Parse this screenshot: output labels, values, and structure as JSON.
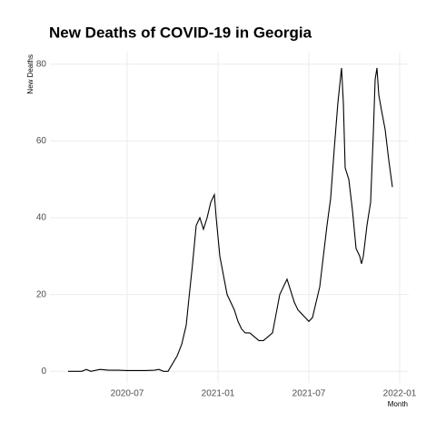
{
  "chart_data": {
    "type": "line",
    "title": "New Deaths of COVID-19 in Georgia",
    "x_label": "Month",
    "y_label": "New Deaths",
    "x": [
      2020.175,
      2020.25,
      2020.275,
      2020.3,
      2020.35,
      2020.4,
      2020.45,
      2020.5,
      2020.55,
      2020.6,
      2020.65,
      2020.675,
      2020.7,
      2020.725,
      2020.75,
      2020.775,
      2020.8,
      2020.825,
      2020.84,
      2020.86,
      2020.88,
      2020.9,
      2020.92,
      2020.94,
      2020.96,
      2020.98,
      2020.99,
      2021.01,
      2021.03,
      2021.05,
      2021.07,
      2021.09,
      2021.11,
      2021.13,
      2021.15,
      2021.175,
      2021.2,
      2021.225,
      2021.25,
      2021.275,
      2021.3,
      2021.32,
      2021.34,
      2021.36,
      2021.38,
      2021.4,
      2021.42,
      2021.44,
      2021.46,
      2021.48,
      2021.5,
      2021.52,
      2021.54,
      2021.56,
      2021.58,
      2021.6,
      2021.62,
      2021.64,
      2021.66,
      2021.68,
      2021.69,
      2021.7,
      2021.72,
      2021.74,
      2021.76,
      2021.78,
      2021.79,
      2021.8,
      2021.82,
      2021.84,
      2021.855,
      2021.865,
      2021.875,
      2021.885,
      2021.9,
      2021.92,
      2021.94,
      2021.96
    ],
    "series": [
      {
        "name": "New Deaths",
        "color": "#000000",
        "values": [
          0,
          0,
          0.5,
          0,
          0.5,
          0.3,
          0.3,
          0.2,
          0.2,
          0.2,
          0.3,
          0.5,
          0,
          0,
          2,
          4,
          7,
          12,
          19,
          28,
          38,
          40,
          37,
          40,
          44,
          46,
          40,
          30,
          25,
          20,
          18,
          16,
          13,
          11,
          10,
          10,
          9,
          8,
          8,
          9,
          10,
          15,
          20,
          22,
          24,
          21,
          18,
          16,
          15,
          14,
          13,
          14,
          18,
          22,
          30,
          38,
          45,
          58,
          70,
          79,
          70,
          53,
          50,
          42,
          32,
          30,
          28,
          30,
          38,
          44,
          62,
          76,
          79,
          72,
          68,
          63,
          55,
          48
        ]
      }
    ],
    "xlim": [
      2020.075,
      2022.05
    ],
    "xticks": [
      {
        "value": 2020.5,
        "label": "2020-07"
      },
      {
        "value": 2021.0,
        "label": "2021-01"
      },
      {
        "value": 2021.5,
        "label": "2021-07"
      },
      {
        "value": 2022.0,
        "label": "2022-01"
      }
    ],
    "ylim": [
      -3,
      83
    ],
    "yticks": [
      0,
      20,
      40,
      60,
      80
    ],
    "grid": true
  }
}
